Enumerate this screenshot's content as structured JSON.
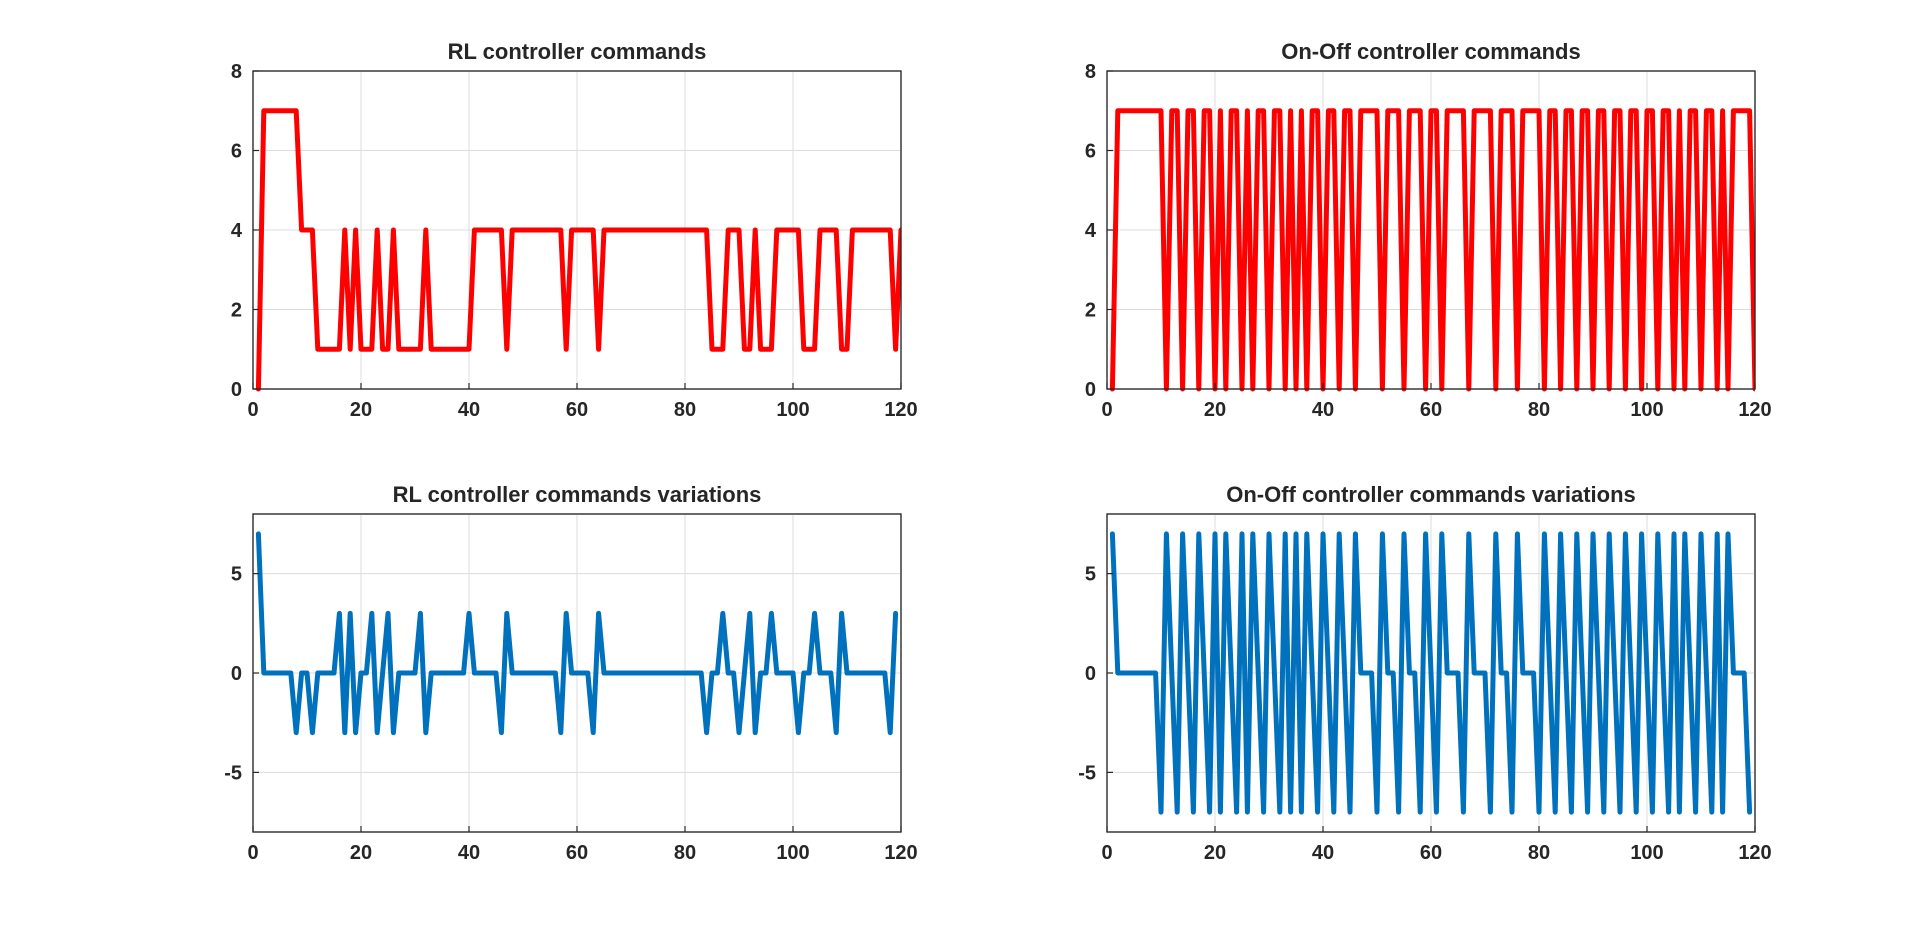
{
  "chart_data": [
    {
      "type": "line",
      "title": "RL controller commands",
      "xlabel": "",
      "ylabel": "",
      "xlim": [
        0,
        120
      ],
      "ylim": [
        0,
        8
      ],
      "xticks": [
        0,
        20,
        40,
        60,
        80,
        100,
        120
      ],
      "yticks": [
        0,
        2,
        4,
        6,
        8
      ],
      "xtick_labels": [
        "0",
        "20",
        "40",
        "60",
        "80",
        "100",
        "120"
      ],
      "ytick_labels": [
        "0",
        "2",
        "4",
        "6",
        "8"
      ],
      "grid": true,
      "color": "#ff0000",
      "series": [
        {
          "x": [
            1,
            2,
            3,
            4,
            5,
            6,
            7,
            8,
            9,
            10,
            11,
            12,
            13,
            14,
            15,
            16,
            17,
            18,
            19,
            20,
            21,
            22,
            23,
            24,
            25,
            26,
            27,
            28,
            29,
            30,
            31,
            32,
            33,
            34,
            35,
            36,
            37,
            38,
            39,
            40,
            41,
            42,
            43,
            44,
            45,
            46,
            47,
            48,
            49,
            50,
            51,
            52,
            53,
            54,
            55,
            56,
            57,
            58,
            59,
            60,
            61,
            62,
            63,
            64,
            65,
            66,
            67,
            68,
            69,
            70,
            71,
            72,
            73,
            74,
            75,
            76,
            77,
            78,
            79,
            80,
            81,
            82,
            83,
            84,
            85,
            86,
            87,
            88,
            89,
            90,
            91,
            92,
            93,
            94,
            95,
            96,
            97,
            98,
            99,
            100,
            101,
            102,
            103,
            104,
            105,
            106,
            107,
            108,
            109,
            110,
            111,
            112,
            113,
            114,
            115,
            116,
            117,
            118,
            119,
            120
          ],
          "y": [
            0,
            7,
            7,
            7,
            7,
            7,
            7,
            7,
            4,
            4,
            4,
            1,
            1,
            1,
            1,
            1,
            4,
            1,
            4,
            1,
            1,
            1,
            4,
            1,
            1,
            4,
            1,
            1,
            1,
            1,
            1,
            4,
            1,
            1,
            1,
            1,
            1,
            1,
            1,
            1,
            4,
            4,
            4,
            4,
            4,
            4,
            1,
            4,
            4,
            4,
            4,
            4,
            4,
            4,
            4,
            4,
            4,
            1,
            4,
            4,
            4,
            4,
            4,
            1,
            4,
            4,
            4,
            4,
            4,
            4,
            4,
            4,
            4,
            4,
            4,
            4,
            4,
            4,
            4,
            4,
            4,
            4,
            4,
            4,
            1,
            1,
            1,
            4,
            4,
            4,
            1,
            1,
            4,
            1,
            1,
            1,
            4,
            4,
            4,
            4,
            4,
            1,
            1,
            1,
            4,
            4,
            4,
            4,
            1,
            1,
            4,
            4,
            4,
            4,
            4,
            4,
            4,
            4,
            1,
            4
          ]
        }
      ]
    },
    {
      "type": "line",
      "title": "On-Off controller commands",
      "xlabel": "",
      "ylabel": "",
      "xlim": [
        0,
        120
      ],
      "ylim": [
        0,
        8
      ],
      "xticks": [
        0,
        20,
        40,
        60,
        80,
        100,
        120
      ],
      "yticks": [
        0,
        2,
        4,
        6,
        8
      ],
      "xtick_labels": [
        "0",
        "20",
        "40",
        "60",
        "80",
        "100",
        "120"
      ],
      "ytick_labels": [
        "0",
        "2",
        "4",
        "6",
        "8"
      ],
      "grid": true,
      "color": "#ff0000",
      "series": [
        {
          "x": [
            1,
            2,
            3,
            4,
            5,
            6,
            7,
            8,
            9,
            10,
            11,
            12,
            13,
            14,
            15,
            16,
            17,
            18,
            19,
            20,
            21,
            22,
            23,
            24,
            25,
            26,
            27,
            28,
            29,
            30,
            31,
            32,
            33,
            34,
            35,
            36,
            37,
            38,
            39,
            40,
            41,
            42,
            43,
            44,
            45,
            46,
            47,
            48,
            49,
            50,
            51,
            52,
            53,
            54,
            55,
            56,
            57,
            58,
            59,
            60,
            61,
            62,
            63,
            64,
            65,
            66,
            67,
            68,
            69,
            70,
            71,
            72,
            73,
            74,
            75,
            76,
            77,
            78,
            79,
            80,
            81,
            82,
            83,
            84,
            85,
            86,
            87,
            88,
            89,
            90,
            91,
            92,
            93,
            94,
            95,
            96,
            97,
            98,
            99,
            100,
            101,
            102,
            103,
            104,
            105,
            106,
            107,
            108,
            109,
            110,
            111,
            112,
            113,
            114,
            115,
            116,
            117,
            118,
            119,
            120
          ],
          "y": [
            0,
            7,
            7,
            7,
            7,
            7,
            7,
            7,
            7,
            7,
            0,
            7,
            7,
            0,
            7,
            7,
            0,
            7,
            7,
            0,
            7,
            0,
            7,
            7,
            0,
            7,
            0,
            7,
            7,
            0,
            7,
            7,
            0,
            7,
            0,
            7,
            0,
            7,
            7,
            0,
            7,
            7,
            0,
            7,
            7,
            0,
            7,
            7,
            7,
            7,
            0,
            7,
            7,
            7,
            0,
            7,
            7,
            7,
            0,
            7,
            7,
            0,
            7,
            7,
            7,
            7,
            0,
            7,
            7,
            7,
            7,
            0,
            7,
            7,
            7,
            0,
            7,
            7,
            7,
            7,
            0,
            7,
            7,
            0,
            7,
            7,
            0,
            7,
            7,
            0,
            7,
            7,
            0,
            7,
            7,
            0,
            7,
            7,
            0,
            7,
            7,
            0,
            7,
            7,
            0,
            7,
            0,
            7,
            7,
            0,
            7,
            7,
            0,
            7,
            0,
            7,
            7,
            7,
            7,
            0
          ]
        }
      ]
    },
    {
      "type": "line",
      "title": "RL controller commands variations",
      "xlabel": "",
      "ylabel": "",
      "xlim": [
        0,
        120
      ],
      "ylim": [
        -8,
        8
      ],
      "xticks": [
        0,
        20,
        40,
        60,
        80,
        100,
        120
      ],
      "yticks": [
        -5,
        0,
        5
      ],
      "xtick_labels": [
        "0",
        "20",
        "40",
        "60",
        "80",
        "100",
        "120"
      ],
      "ytick_labels": [
        "-5",
        "0",
        "5"
      ],
      "grid": true,
      "color": "#0072bd",
      "series": [
        {
          "x": [
            1,
            2,
            3,
            4,
            5,
            6,
            7,
            8,
            9,
            10,
            11,
            12,
            13,
            14,
            15,
            16,
            17,
            18,
            19,
            20,
            21,
            22,
            23,
            24,
            25,
            26,
            27,
            28,
            29,
            30,
            31,
            32,
            33,
            34,
            35,
            36,
            37,
            38,
            39,
            40,
            41,
            42,
            43,
            44,
            45,
            46,
            47,
            48,
            49,
            50,
            51,
            52,
            53,
            54,
            55,
            56,
            57,
            58,
            59,
            60,
            61,
            62,
            63,
            64,
            65,
            66,
            67,
            68,
            69,
            70,
            71,
            72,
            73,
            74,
            75,
            76,
            77,
            78,
            79,
            80,
            81,
            82,
            83,
            84,
            85,
            86,
            87,
            88,
            89,
            90,
            91,
            92,
            93,
            94,
            95,
            96,
            97,
            98,
            99,
            100,
            101,
            102,
            103,
            104,
            105,
            106,
            107,
            108,
            109,
            110,
            111,
            112,
            113,
            114,
            115,
            116,
            117,
            118,
            119
          ],
          "y": [
            7,
            0,
            0,
            0,
            0,
            0,
            0,
            -3,
            0,
            0,
            -3,
            0,
            0,
            0,
            0,
            3,
            -3,
            3,
            -3,
            0,
            0,
            3,
            -3,
            0,
            3,
            -3,
            0,
            0,
            0,
            0,
            3,
            -3,
            0,
            0,
            0,
            0,
            0,
            0,
            0,
            3,
            0,
            0,
            0,
            0,
            0,
            -3,
            3,
            0,
            0,
            0,
            0,
            0,
            0,
            0,
            0,
            0,
            -3,
            3,
            0,
            0,
            0,
            0,
            -3,
            3,
            0,
            0,
            0,
            0,
            0,
            0,
            0,
            0,
            0,
            0,
            0,
            0,
            0,
            0,
            0,
            0,
            0,
            0,
            0,
            -3,
            0,
            0,
            3,
            0,
            0,
            -3,
            0,
            3,
            -3,
            0,
            0,
            3,
            0,
            0,
            0,
            0,
            -3,
            0,
            0,
            3,
            0,
            0,
            0,
            -3,
            3,
            0,
            0,
            0,
            0,
            0,
            0,
            0,
            0,
            -3,
            3
          ]
        }
      ]
    },
    {
      "type": "line",
      "title": "On-Off controller commands variations",
      "xlabel": "",
      "ylabel": "",
      "xlim": [
        0,
        120
      ],
      "ylim": [
        -8,
        8
      ],
      "xticks": [
        0,
        20,
        40,
        60,
        80,
        100,
        120
      ],
      "yticks": [
        -5,
        0,
        5
      ],
      "xtick_labels": [
        "0",
        "20",
        "40",
        "60",
        "80",
        "100",
        "120"
      ],
      "ytick_labels": [
        "-5",
        "0",
        "5"
      ],
      "grid": true,
      "color": "#0072bd",
      "series": [
        {
          "x": [
            1,
            2,
            3,
            4,
            5,
            6,
            7,
            8,
            9,
            10,
            11,
            12,
            13,
            14,
            15,
            16,
            17,
            18,
            19,
            20,
            21,
            22,
            23,
            24,
            25,
            26,
            27,
            28,
            29,
            30,
            31,
            32,
            33,
            34,
            35,
            36,
            37,
            38,
            39,
            40,
            41,
            42,
            43,
            44,
            45,
            46,
            47,
            48,
            49,
            50,
            51,
            52,
            53,
            54,
            55,
            56,
            57,
            58,
            59,
            60,
            61,
            62,
            63,
            64,
            65,
            66,
            67,
            68,
            69,
            70,
            71,
            72,
            73,
            74,
            75,
            76,
            77,
            78,
            79,
            80,
            81,
            82,
            83,
            84,
            85,
            86,
            87,
            88,
            89,
            90,
            91,
            92,
            93,
            94,
            95,
            96,
            97,
            98,
            99,
            100,
            101,
            102,
            103,
            104,
            105,
            106,
            107,
            108,
            109,
            110,
            111,
            112,
            113,
            114,
            115,
            116,
            117,
            118,
            119
          ],
          "y": [
            7,
            0,
            0,
            0,
            0,
            0,
            0,
            0,
            0,
            -7,
            7,
            0,
            -7,
            7,
            0,
            -7,
            7,
            0,
            -7,
            7,
            -7,
            7,
            0,
            -7,
            7,
            -7,
            7,
            0,
            -7,
            7,
            0,
            -7,
            7,
            -7,
            7,
            -7,
            7,
            0,
            -7,
            7,
            0,
            -7,
            7,
            0,
            -7,
            7,
            0,
            0,
            0,
            -7,
            7,
            0,
            0,
            -7,
            7,
            0,
            0,
            -7,
            7,
            0,
            -7,
            7,
            0,
            0,
            0,
            -7,
            7,
            0,
            0,
            0,
            -7,
            7,
            0,
            0,
            -7,
            7,
            0,
            0,
            0,
            -7,
            7,
            0,
            -7,
            7,
            0,
            -7,
            7,
            0,
            -7,
            7,
            0,
            -7,
            7,
            0,
            -7,
            7,
            0,
            -7,
            7,
            0,
            -7,
            7,
            0,
            -7,
            7,
            -7,
            7,
            0,
            -7,
            7,
            0,
            -7,
            7,
            -7,
            7,
            0,
            0,
            0,
            -7
          ]
        }
      ]
    }
  ]
}
